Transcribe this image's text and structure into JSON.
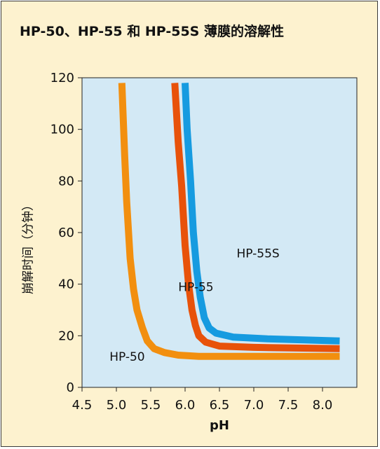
{
  "chart_data": {
    "type": "line",
    "title": "HP-50、HP-55 和 HP-55S 薄膜的溶解性",
    "xlabel": "pH",
    "ylabel": "崩解时间（分钟）",
    "xlim": [
      4.5,
      8.5
    ],
    "ylim": [
      0,
      120
    ],
    "x_ticks": [
      "4.5",
      "5.0",
      "5.5",
      "6.0",
      "6.5",
      "7.0",
      "7.5",
      "8.0"
    ],
    "y_ticks": [
      "0",
      "20",
      "40",
      "60",
      "80",
      "100",
      "120"
    ],
    "grid": false,
    "plot_background": "#d3e9f5",
    "series": [
      {
        "name": "HP-50",
        "color": "#f28f0f",
        "label_position": [
          4.9,
          12
        ],
        "points": [
          [
            5.08,
            118
          ],
          [
            5.12,
            90
          ],
          [
            5.15,
            72
          ],
          [
            5.2,
            50
          ],
          [
            5.25,
            38
          ],
          [
            5.3,
            30
          ],
          [
            5.38,
            23
          ],
          [
            5.45,
            18
          ],
          [
            5.55,
            15
          ],
          [
            5.7,
            13.5
          ],
          [
            5.9,
            12.5
          ],
          [
            6.2,
            12
          ],
          [
            7.0,
            12
          ],
          [
            8.25,
            12
          ]
        ]
      },
      {
        "name": "HP-55",
        "color": "#e8520a",
        "label_position": [
          5.9,
          39
        ],
        "points": [
          [
            5.85,
            118
          ],
          [
            5.9,
            95
          ],
          [
            5.95,
            78
          ],
          [
            6.0,
            55
          ],
          [
            6.05,
            40
          ],
          [
            6.1,
            30
          ],
          [
            6.15,
            24
          ],
          [
            6.2,
            20
          ],
          [
            6.3,
            17.5
          ],
          [
            6.5,
            16
          ],
          [
            7.0,
            15.5
          ],
          [
            8.25,
            15
          ]
        ]
      },
      {
        "name": "HP-55S",
        "color": "#169be0",
        "label_position": [
          6.75,
          52
        ],
        "points": [
          [
            6.0,
            118
          ],
          [
            6.03,
            100
          ],
          [
            6.08,
            80
          ],
          [
            6.12,
            60
          ],
          [
            6.17,
            45
          ],
          [
            6.22,
            35
          ],
          [
            6.28,
            27
          ],
          [
            6.35,
            23
          ],
          [
            6.45,
            21
          ],
          [
            6.7,
            19.5
          ],
          [
            7.2,
            18.8
          ],
          [
            8.25,
            18
          ]
        ]
      }
    ]
  }
}
